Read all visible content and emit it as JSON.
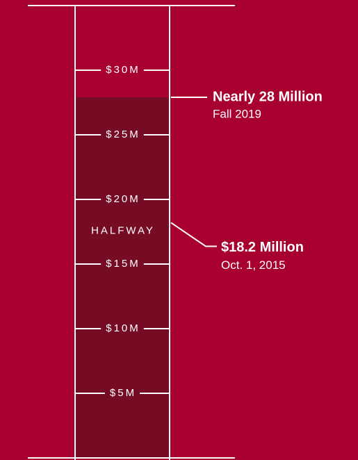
{
  "chart_data": {
    "type": "bar",
    "categories": [
      null
    ],
    "values": [
      27.9
    ],
    "color": "#760c24",
    "ylim": [
      0,
      35
    ],
    "yticks": [
      {
        "value": 5,
        "label": "$5M"
      },
      {
        "value": 10,
        "label": "$10M"
      },
      {
        "value": 15,
        "label": "$15M"
      },
      {
        "value": 20,
        "label": "$20M"
      },
      {
        "value": 25,
        "label": "$25M"
      },
      {
        "value": 30,
        "label": "$30M"
      }
    ],
    "marker_label": "HALFWAY",
    "annotations": [
      {
        "value": 27.9,
        "label": "Nearly 28 Million",
        "sublabel": "Fall 2019"
      },
      {
        "value": 18.2,
        "label": "$18.2 Million",
        "sublabel": "Oct. 1, 2015"
      }
    ]
  }
}
